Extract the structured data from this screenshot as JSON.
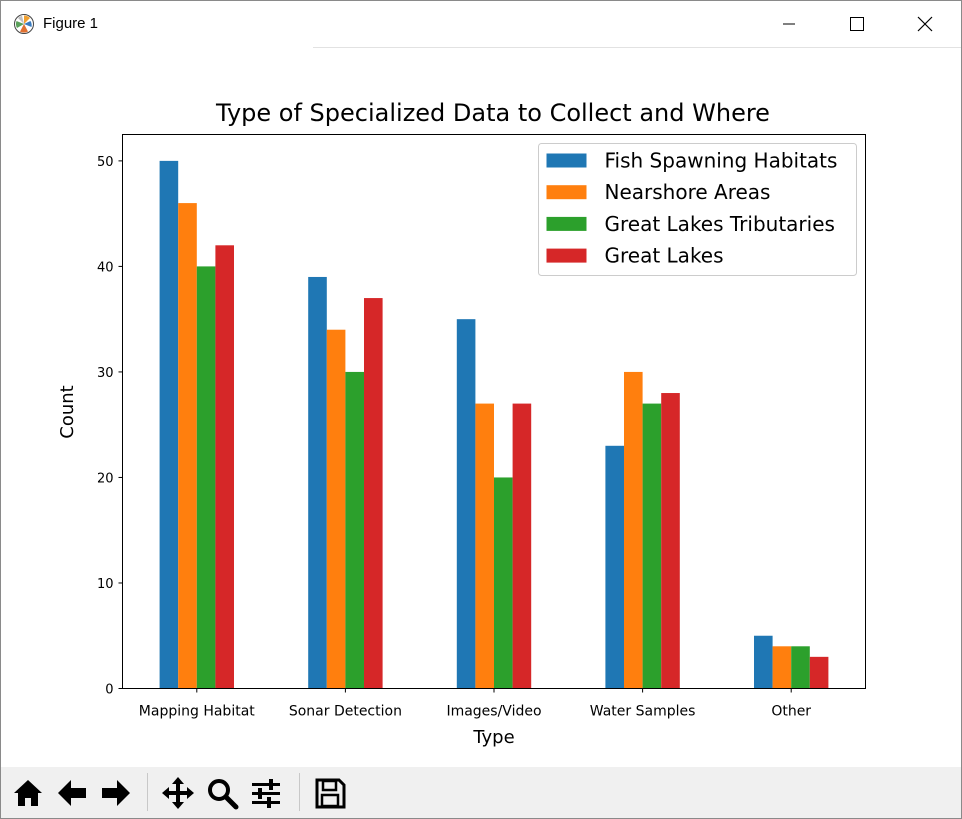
{
  "window": {
    "title": "Figure 1"
  },
  "toolbar": {
    "buttons": [
      {
        "name": "home-button",
        "icon": "home-icon"
      },
      {
        "name": "back-button",
        "icon": "arrow-left-icon"
      },
      {
        "name": "forward-button",
        "icon": "arrow-right-icon"
      },
      {
        "name": "pan-button",
        "icon": "move-icon"
      },
      {
        "name": "zoom-button",
        "icon": "magnifier-icon"
      },
      {
        "name": "configure-subplots-button",
        "icon": "sliders-icon"
      },
      {
        "name": "save-button",
        "icon": "floppy-disk-icon"
      }
    ]
  },
  "chart_data": {
    "type": "bar",
    "title": "Type of Specialized Data to Collect and Where",
    "xlabel": "Type",
    "ylabel": "Count",
    "categories": [
      "Mapping Habitat",
      "Sonar Detection",
      "Images/Video",
      "Water Samples",
      "Other"
    ],
    "series": [
      {
        "name": "Fish Spawning Habitats",
        "color": "#1f77b4",
        "values": [
          50,
          39,
          35,
          23,
          5
        ]
      },
      {
        "name": "Nearshore Areas",
        "color": "#ff7f0e",
        "values": [
          46,
          34,
          27,
          30,
          4
        ]
      },
      {
        "name": "Great Lakes Tributaries",
        "color": "#2ca02c",
        "values": [
          40,
          30,
          20,
          27,
          4
        ]
      },
      {
        "name": "Great Lakes",
        "color": "#d62728",
        "values": [
          42,
          37,
          27,
          28,
          3
        ]
      }
    ],
    "yticks": [
      0,
      10,
      20,
      30,
      40,
      50
    ],
    "ylim": [
      0,
      52.5
    ],
    "grid": false,
    "legend_position": "top-right"
  }
}
